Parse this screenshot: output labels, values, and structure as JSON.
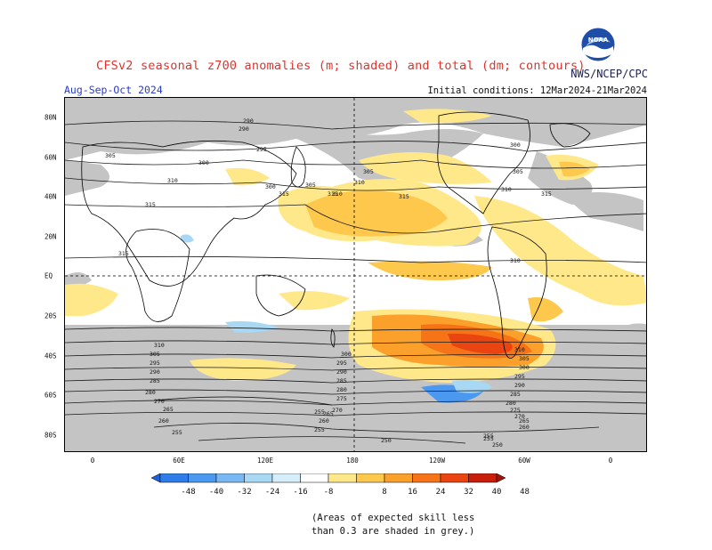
{
  "header": {
    "title": "CFSv2 seasonal z700 anomalies (m; shaded) and total (dm; contours)",
    "agency": "NWS/NCEP/CPC",
    "period": "Aug-Sep-Oct 2024",
    "initial_conditions": "Initial conditions: 12Mar2024-21Mar2024"
  },
  "map": {
    "lat_labels": [
      "80N",
      "60N",
      "40N",
      "20N",
      "EQ",
      "20S",
      "40S",
      "60S",
      "80S"
    ],
    "lon_labels": [
      "0",
      "60E",
      "120E",
      "180",
      "120W",
      "60W",
      "0"
    ],
    "contour_labels": [
      "290",
      "295",
      "300",
      "305",
      "310",
      "315",
      "300",
      "310",
      "305",
      "315",
      "305",
      "310",
      "315",
      "310",
      "300",
      "295",
      "290",
      "285",
      "280",
      "275",
      "270",
      "265",
      "260",
      "255",
      "310",
      "305",
      "295",
      "290",
      "285",
      "280",
      "270",
      "265",
      "260",
      "255",
      "315",
      "310",
      "305",
      "300",
      "295",
      "290",
      "285",
      "280",
      "275",
      "270",
      "265",
      "260",
      "255",
      "250",
      "315",
      "255",
      "250",
      "255",
      "290",
      "300",
      "305",
      "310",
      "315"
    ],
    "colors": {
      "skill_grey": "#c4c4c4",
      "land_line": "#000000",
      "contour": "#1a1a1a"
    }
  },
  "colorbar": {
    "ticks": [
      "-48",
      "-40",
      "-32",
      "-24",
      "-16",
      "-8",
      "8",
      "16",
      "24",
      "32",
      "40",
      "48"
    ],
    "colors": [
      "#1e5fd8",
      "#2f7de8",
      "#4b98f0",
      "#7ab8f4",
      "#a9d8f5",
      "#d6eefa",
      "#ffffff",
      "#ffe88a",
      "#fdc84c",
      "#fba02a",
      "#f67318",
      "#ea4410",
      "#c91e0c",
      "#a0140a"
    ]
  },
  "note": {
    "line1": "(Areas of expected skill less",
    "line2": "than 0.3 are shaded in grey.)"
  },
  "logo": {
    "text": "NOAA"
  }
}
